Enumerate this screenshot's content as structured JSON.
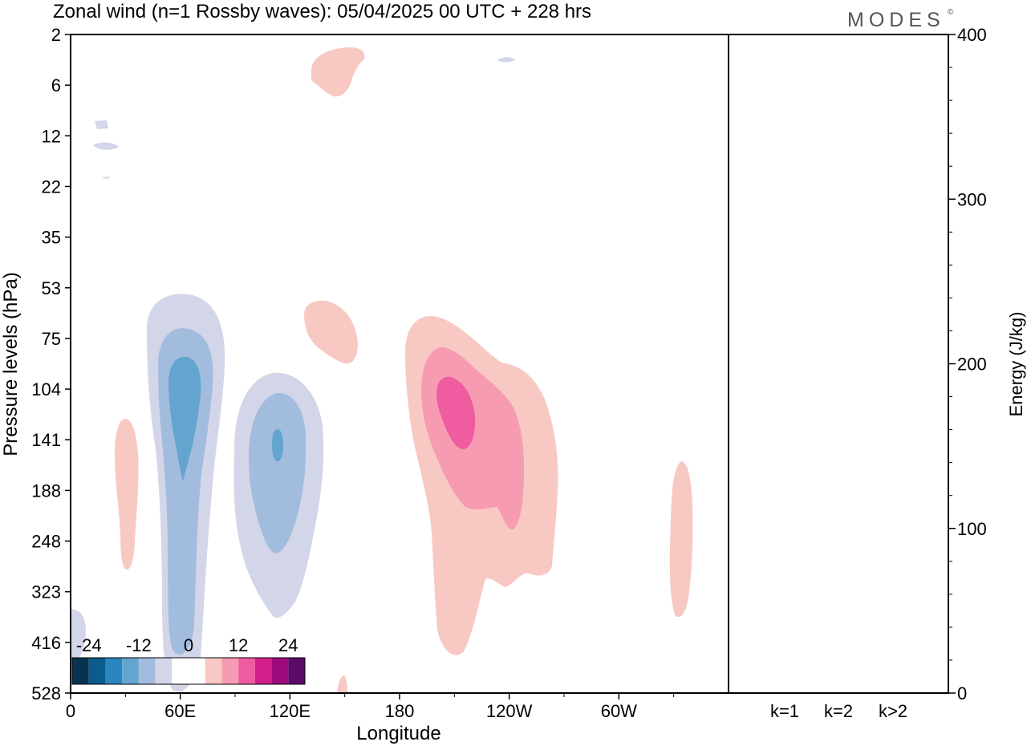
{
  "header": {
    "title": "Zonal wind (n=1 Rossby waves):  05/04/2025  00 UTC  + 228 hrs",
    "brand": "MODES",
    "brand_mark": "©"
  },
  "colors": {
    "neg_levels": [
      "#08334f",
      "#0b5c8c",
      "#2b85bf",
      "#63a5cf",
      "#a2bcdd",
      "#d3d5e8"
    ],
    "pos_levels": [
      "#f8c8c3",
      "#f79bb3",
      "#ef5c9f",
      "#d11f8a",
      "#9c0a7c",
      "#5c0a6a"
    ],
    "white": "#ffffff"
  },
  "chart_data": [
    {
      "type": "heatmap",
      "title": "",
      "xlabel": "Longitude",
      "ylabel": "Pressure levels (hPa)",
      "x_ticks": [
        "0",
        "60E",
        "120E",
        "180",
        "120W",
        "60W"
      ],
      "x_tick_values": [
        0,
        60,
        120,
        180,
        240,
        300
      ],
      "xlim": [
        0,
        360
      ],
      "y_ticks": [
        "2",
        "6",
        "12",
        "22",
        "35",
        "53",
        "75",
        "104",
        "141",
        "188",
        "248",
        "323",
        "416",
        "528"
      ],
      "colorbar": {
        "labels": [
          "-24",
          "-12",
          "0",
          "12",
          "24"
        ],
        "negative_bins": 6,
        "zero_bins": 2,
        "positive_bins": 6
      },
      "features": [
        {
          "sign": "negative",
          "lon": 62,
          "level": "141",
          "lon_range": [
            42,
            84
          ],
          "level_range": [
            "53",
            "528"
          ],
          "peak_band": -4
        },
        {
          "sign": "negative",
          "lon": 113,
          "level": "141",
          "lon_range": [
            90,
            138
          ],
          "level_range": [
            "104",
            "323"
          ],
          "peak_band": -4
        },
        {
          "sign": "negative",
          "lon": 0,
          "level": "416",
          "lon_range": [
            0,
            8
          ],
          "level_range": [
            "323",
            "528"
          ],
          "peak_band": -1
        },
        {
          "sign": "negative",
          "lon": 17,
          "level": "12",
          "lon_range": [
            12,
            26
          ],
          "level_range": [
            "12",
            "22"
          ],
          "peak_band": -1
        },
        {
          "sign": "negative",
          "lon": 238,
          "level": "2",
          "lon_range": [
            234,
            242
          ],
          "level_range": [
            "2",
            "6"
          ],
          "peak_band": -1
        },
        {
          "sign": "positive",
          "lon": 210,
          "level": "104",
          "lon_range": [
            184,
            266
          ],
          "level_range": [
            "75",
            "416"
          ],
          "peak_band": 3
        },
        {
          "sign": "positive",
          "lon": 145,
          "level": "75",
          "lon_range": [
            127,
            156
          ],
          "level_range": [
            "53",
            "104"
          ],
          "peak_band": 1
        },
        {
          "sign": "positive",
          "lon": 145,
          "level": "6",
          "lon_range": [
            131,
            161
          ],
          "level_range": [
            "2",
            "6"
          ],
          "peak_band": 1
        },
        {
          "sign": "positive",
          "lon": 30,
          "level": "188",
          "lon_range": [
            24,
            37
          ],
          "level_range": [
            "141",
            "323"
          ],
          "peak_band": 1
        },
        {
          "sign": "positive",
          "lon": 333,
          "level": "248",
          "lon_range": [
            327,
            340
          ],
          "level_range": [
            "141",
            "416"
          ],
          "peak_band": 1
        },
        {
          "sign": "positive",
          "lon": 149,
          "level": "528",
          "lon_range": [
            146,
            152
          ],
          "level_range": [
            "416",
            "528"
          ],
          "peak_band": 1
        }
      ]
    },
    {
      "type": "bar",
      "title": "",
      "xlabel": "",
      "ylabel": "Energy (J/kg)",
      "categories": [
        "k=1",
        "k=2",
        "k>2"
      ],
      "values": [
        0.5,
        0.3,
        0.4
      ],
      "ylim": [
        0,
        400
      ],
      "y_ticks": [
        "0",
        "100",
        "200",
        "300",
        "400"
      ]
    }
  ]
}
